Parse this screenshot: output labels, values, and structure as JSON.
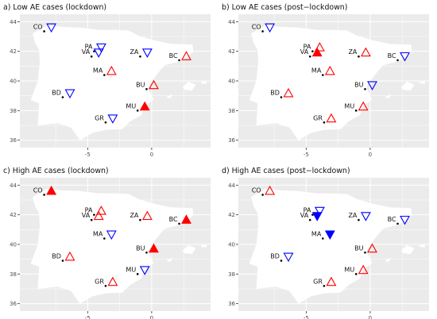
{
  "colors": {
    "panel_bg": "#ebebeb",
    "grid": "#ffffff",
    "land": "#ffffff",
    "up": "#ff0000",
    "down": "#0000ff"
  },
  "axes": {
    "x_ticks": [
      -5,
      0
    ],
    "x_tick_labels": [
      "-5",
      "0"
    ],
    "y_ticks": [
      36,
      38,
      40,
      42,
      44
    ],
    "y_tick_labels": [
      "36",
      "38",
      "40",
      "42",
      "44"
    ],
    "xlim": [
      -10.3,
      4.6
    ],
    "ylim": [
      35.5,
      44.5
    ]
  },
  "cities": [
    {
      "code": "CO",
      "lon": -8.4,
      "lat": 43.35
    },
    {
      "code": "PA",
      "lon": -4.5,
      "lat": 42.0
    },
    {
      "code": "VA",
      "lon": -4.7,
      "lat": 41.65
    },
    {
      "code": "ZA",
      "lon": -0.9,
      "lat": 41.65
    },
    {
      "code": "BC",
      "lon": 2.15,
      "lat": 41.4
    },
    {
      "code": "MA",
      "lon": -3.7,
      "lat": 40.4
    },
    {
      "code": "BU",
      "lon": -0.4,
      "lat": 39.45
    },
    {
      "code": "BD",
      "lon": -6.95,
      "lat": 38.9
    },
    {
      "code": "MU",
      "lon": -1.1,
      "lat": 38.0
    },
    {
      "code": "GR",
      "lon": -3.6,
      "lat": 37.2
    }
  ],
  "chart_data": [
    {
      "type": "map",
      "title": "a) Low AE cases (lockdown)",
      "markers": [
        {
          "code": "CO",
          "direction": "down",
          "filled": false
        },
        {
          "code": "PA",
          "direction": "down",
          "filled": false
        },
        {
          "code": "VA",
          "direction": "down",
          "filled": false
        },
        {
          "code": "ZA",
          "direction": "down",
          "filled": false
        },
        {
          "code": "BC",
          "direction": "up",
          "filled": false
        },
        {
          "code": "MA",
          "direction": "up",
          "filled": false
        },
        {
          "code": "BU",
          "direction": "up",
          "filled": false
        },
        {
          "code": "BD",
          "direction": "down",
          "filled": false
        },
        {
          "code": "MU",
          "direction": "up",
          "filled": true
        },
        {
          "code": "GR",
          "direction": "down",
          "filled": false
        }
      ]
    },
    {
      "type": "map",
      "title": "b) Low AE cases (post−lockdown)",
      "markers": [
        {
          "code": "CO",
          "direction": "down",
          "filled": false
        },
        {
          "code": "PA",
          "direction": "up",
          "filled": false
        },
        {
          "code": "VA",
          "direction": "up",
          "filled": true
        },
        {
          "code": "ZA",
          "direction": "up",
          "filled": false
        },
        {
          "code": "BC",
          "direction": "down",
          "filled": false
        },
        {
          "code": "MA",
          "direction": "up",
          "filled": false
        },
        {
          "code": "BU",
          "direction": "down",
          "filled": false
        },
        {
          "code": "BD",
          "direction": "up",
          "filled": false
        },
        {
          "code": "MU",
          "direction": "up",
          "filled": false
        },
        {
          "code": "GR",
          "direction": "up",
          "filled": false
        }
      ]
    },
    {
      "type": "map",
      "title": "c) High AE cases (lockdown)",
      "markers": [
        {
          "code": "CO",
          "direction": "up",
          "filled": true
        },
        {
          "code": "PA",
          "direction": "up",
          "filled": false
        },
        {
          "code": "VA",
          "direction": "up",
          "filled": false
        },
        {
          "code": "ZA",
          "direction": "up",
          "filled": false
        },
        {
          "code": "BC",
          "direction": "up",
          "filled": true
        },
        {
          "code": "MA",
          "direction": "down",
          "filled": false
        },
        {
          "code": "BU",
          "direction": "up",
          "filled": true
        },
        {
          "code": "BD",
          "direction": "up",
          "filled": false
        },
        {
          "code": "MU",
          "direction": "down",
          "filled": false
        },
        {
          "code": "GR",
          "direction": "up",
          "filled": false
        }
      ]
    },
    {
      "type": "map",
      "title": "d) High AE cases (post−lockdown)",
      "markers": [
        {
          "code": "CO",
          "direction": "up",
          "filled": false
        },
        {
          "code": "PA",
          "direction": "down",
          "filled": false
        },
        {
          "code": "VA",
          "direction": "down",
          "filled": true
        },
        {
          "code": "ZA",
          "direction": "down",
          "filled": false
        },
        {
          "code": "BC",
          "direction": "down",
          "filled": false
        },
        {
          "code": "MA",
          "direction": "down",
          "filled": true
        },
        {
          "code": "BU",
          "direction": "up",
          "filled": false
        },
        {
          "code": "BD",
          "direction": "down",
          "filled": false
        },
        {
          "code": "MU",
          "direction": "up",
          "filled": false
        },
        {
          "code": "GR",
          "direction": "up",
          "filled": false
        }
      ]
    }
  ]
}
